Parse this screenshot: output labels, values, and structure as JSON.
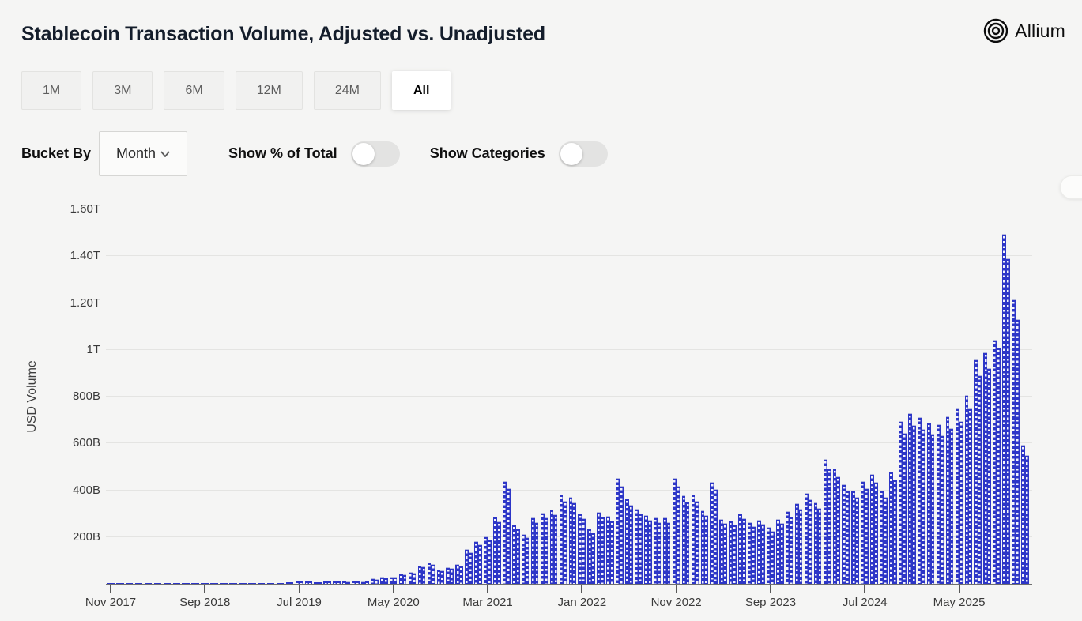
{
  "header": {
    "title": "Stablecoin Transaction Volume, Adjusted vs. Unadjusted",
    "logo_text": "Allium"
  },
  "range_buttons": {
    "options": [
      "1M",
      "3M",
      "6M",
      "12M",
      "24M",
      "All"
    ],
    "selected": "All"
  },
  "controls": {
    "bucket_by_label": "Bucket By",
    "bucket_value": "Month",
    "show_percent_label": "Show % of Total",
    "show_percent_on": false,
    "show_categories_label": "Show Categories",
    "show_categories_on": false
  },
  "chart_data": {
    "type": "bar",
    "grouped": true,
    "title": "Stablecoin Transaction Volume, Adjusted vs. Unadjusted",
    "xlabel": "",
    "ylabel": "USD Volume",
    "units": "billions USD",
    "grid": true,
    "bar_color": "#2d36c7",
    "bar_pattern": "white dotted column",
    "ylim_billions": [
      0,
      1660
    ],
    "y_ticks": [
      {
        "v": 200,
        "label": "200B"
      },
      {
        "v": 400,
        "label": "400B"
      },
      {
        "v": 600,
        "label": "600B"
      },
      {
        "v": 800,
        "label": "800B"
      },
      {
        "v": 1000,
        "label": "1T"
      },
      {
        "v": 1200,
        "label": "1.20T"
      },
      {
        "v": 1400,
        "label": "1.40T"
      },
      {
        "v": 1600,
        "label": "1.60T"
      }
    ],
    "x_start_month": "Nov 2017",
    "x_end_month": "Dec 2025",
    "months_total": 98,
    "x_tick_interval_months": 10,
    "x_tick_labels": [
      "Nov 2017",
      "Sep 2018",
      "Jul 2019",
      "May 2020",
      "Mar 2021",
      "Jan 2022",
      "Nov 2022",
      "Sep 2023",
      "Jul 2024",
      "May 2025"
    ],
    "series": [
      {
        "name": "Unadjusted",
        "values": [
          1,
          2,
          2,
          1,
          1,
          1,
          1,
          1,
          1,
          1,
          2,
          2,
          2,
          3,
          3,
          3,
          4,
          4,
          5,
          6,
          15,
          10,
          8,
          14,
          13,
          12,
          13,
          11,
          22,
          29,
          31,
          44,
          52,
          79,
          92,
          62,
          71,
          85,
          147,
          181,
          204,
          288,
          440,
          254,
          214,
          285,
          305,
          319,
          380,
          373,
          302,
          237,
          308,
          291,
          451,
          363,
          322,
          295,
          282,
          282,
          452,
          377,
          383,
          315,
          434,
          278,
          271,
          302,
          264,
          275,
          244,
          278,
          309,
          346,
          387,
          349,
          532,
          492,
          427,
          400,
          440,
          468,
          400,
          478,
          694,
          729,
          712,
          688,
          682,
          715,
          749,
          807,
          959,
          990,
          1044,
          1495,
          1216,
          593
        ]
      },
      {
        "name": "Adjusted",
        "values": [
          1,
          2,
          2,
          1,
          1,
          1,
          1,
          1,
          1,
          1,
          2,
          2,
          2,
          3,
          3,
          3,
          4,
          4,
          5,
          6,
          13,
          9,
          7,
          13,
          12,
          11,
          12,
          10,
          20,
          27,
          29,
          41,
          48,
          73,
          85,
          58,
          66,
          79,
          136,
          168,
          190,
          268,
          409,
          236,
          199,
          265,
          284,
          297,
          353,
          347,
          281,
          220,
          286,
          271,
          419,
          338,
          299,
          274,
          262,
          262,
          420,
          351,
          356,
          293,
          404,
          259,
          252,
          281,
          246,
          256,
          227,
          259,
          287,
          322,
          360,
          325,
          492,
          458,
          397,
          372,
          409,
          435,
          372,
          445,
          645,
          678,
          662,
          640,
          634,
          665,
          697,
          751,
          892,
          921,
          1010,
          1390,
          1131,
          551
        ]
      }
    ]
  }
}
